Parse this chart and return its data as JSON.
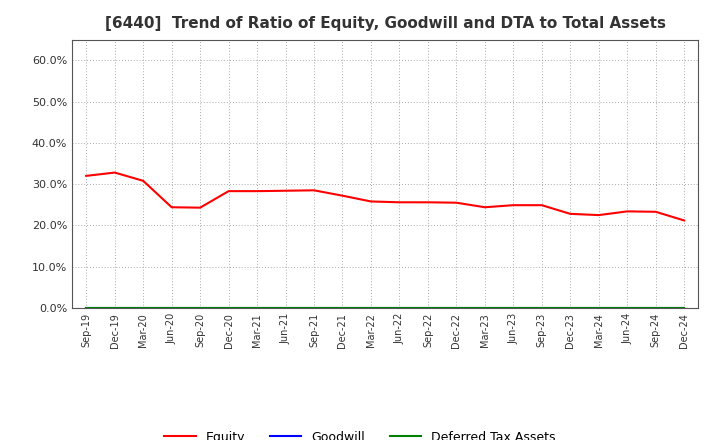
{
  "title": "[6440]  Trend of Ratio of Equity, Goodwill and DTA to Total Assets",
  "x_labels": [
    "Sep-19",
    "Dec-19",
    "Mar-20",
    "Jun-20",
    "Sep-20",
    "Dec-20",
    "Mar-21",
    "Jun-21",
    "Sep-21",
    "Dec-21",
    "Mar-22",
    "Jun-22",
    "Sep-22",
    "Dec-22",
    "Mar-23",
    "Jun-23",
    "Sep-23",
    "Dec-23",
    "Mar-24",
    "Jun-24",
    "Sep-24",
    "Dec-24"
  ],
  "equity": [
    0.32,
    0.328,
    0.308,
    0.244,
    0.243,
    0.283,
    0.283,
    0.284,
    0.285,
    0.272,
    0.258,
    0.256,
    0.256,
    0.255,
    0.244,
    0.249,
    0.249,
    0.228,
    0.225,
    0.234,
    0.233,
    0.212
  ],
  "goodwill": [
    0.0,
    0.0,
    0.0,
    0.0,
    0.0,
    0.0,
    0.0,
    0.0,
    0.0,
    0.0,
    0.0,
    0.0,
    0.0,
    0.0,
    0.0,
    0.0,
    0.0,
    0.0,
    0.0,
    0.0,
    0.0,
    0.0
  ],
  "dta": [
    0.0,
    0.0,
    0.0,
    0.0,
    0.0,
    0.0,
    0.0,
    0.0,
    0.0,
    0.0,
    0.0,
    0.0,
    0.0,
    0.0,
    0.0,
    0.0,
    0.0,
    0.0,
    0.0,
    0.0,
    0.0,
    0.0
  ],
  "equity_color": "#FF0000",
  "goodwill_color": "#0000FF",
  "dta_color": "#008000",
  "ylim": [
    0.0,
    0.65
  ],
  "yticks": [
    0.0,
    0.1,
    0.2,
    0.3,
    0.4,
    0.5,
    0.6
  ],
  "background_color": "#FFFFFF",
  "grid_color": "#AAAAAA",
  "title_fontsize": 11,
  "title_color": "#333333",
  "legend_labels": [
    "Equity",
    "Goodwill",
    "Deferred Tax Assets"
  ]
}
